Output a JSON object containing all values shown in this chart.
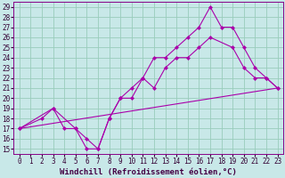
{
  "bg_color": "#c8e8e8",
  "grid_color": "#99ccbb",
  "line_color": "#aa00aa",
  "xlim": [
    -0.5,
    23.5
  ],
  "ylim": [
    14.5,
    29.5
  ],
  "xticks": [
    0,
    1,
    2,
    3,
    4,
    5,
    6,
    7,
    8,
    9,
    10,
    11,
    12,
    13,
    14,
    15,
    16,
    17,
    18,
    19,
    20,
    21,
    22,
    23
  ],
  "yticks": [
    15,
    16,
    17,
    18,
    19,
    20,
    21,
    22,
    23,
    24,
    25,
    26,
    27,
    28,
    29
  ],
  "line1_x": [
    0,
    2,
    3,
    5,
    6,
    7,
    8,
    9,
    10,
    11,
    12,
    13,
    14,
    15,
    16,
    17,
    19,
    20,
    21,
    22,
    23
  ],
  "line1_y": [
    17,
    18,
    19,
    17,
    15,
    15,
    18,
    20,
    20,
    22,
    21,
    23,
    24,
    24,
    25,
    26,
    25,
    23,
    22,
    22,
    21
  ],
  "line2_x": [
    0,
    3,
    4,
    5,
    6,
    7,
    8,
    9,
    10,
    11,
    12,
    13,
    14,
    15,
    16,
    17,
    18,
    19,
    20,
    21,
    22,
    23
  ],
  "line2_y": [
    17,
    19,
    17,
    17,
    16,
    15,
    18,
    20,
    21,
    22,
    24,
    24,
    25,
    26,
    27,
    29,
    27,
    27,
    25,
    23,
    22,
    21
  ],
  "line3_x": [
    0,
    23
  ],
  "line3_y": [
    17,
    21
  ],
  "xlabel": "Windchill (Refroidissement éolien,°C)",
  "font_size_label": 6.5,
  "font_size_tick": 5.5,
  "marker_size": 2.2,
  "lw": 0.8
}
